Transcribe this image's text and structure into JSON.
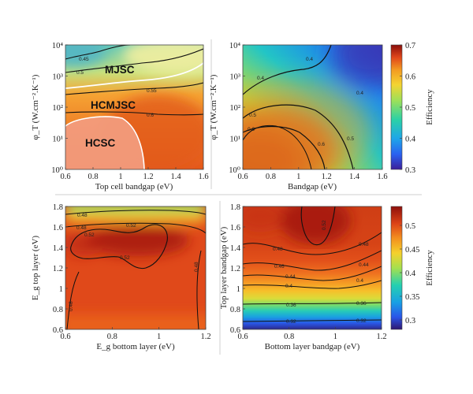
{
  "chart_data": [
    {
      "type": "heatmap",
      "panel": "top-left",
      "xlabel": "Top cell bandgap (eV)",
      "ylabel": "φ_T (W.cm⁻².K⁻¹)",
      "xlim": [
        0.6,
        1.6
      ],
      "ylim_log10": [
        0,
        4
      ],
      "x_ticks": [
        "0.6",
        "0.8",
        "1",
        "1.2",
        "1.4",
        "1.6"
      ],
      "y_ticks": [
        "10⁰",
        "10¹",
        "10²",
        "10³",
        "10⁴"
      ],
      "regions": [
        "MJSC",
        "HCMJSC",
        "HCSC"
      ],
      "contour_labels": [
        "0.45",
        "0.5",
        "0.55",
        "0.6"
      ]
    },
    {
      "type": "heatmap",
      "panel": "top-right",
      "xlabel": "Bandgap (eV)",
      "ylabel": "φ_T (W.cm⁻².K⁻¹)",
      "xlim": [
        0.6,
        1.6
      ],
      "ylim_log10": [
        0,
        4
      ],
      "x_ticks": [
        "0.6",
        "0.8",
        "1",
        "1.2",
        "1.4",
        "1.6"
      ],
      "y_ticks": [
        "10⁰",
        "10¹",
        "10²",
        "10³",
        "10⁴"
      ],
      "contour_labels": [
        "0.4",
        "0.4",
        "0.5",
        "0.6",
        "0.6",
        "0.5",
        "0.4"
      ],
      "colorbar": {
        "label": "Efficiency",
        "range": [
          0.3,
          0.7
        ],
        "ticks": [
          "0.3",
          "0.4",
          "0.5",
          "0.6",
          "0.7"
        ]
      }
    },
    {
      "type": "heatmap",
      "panel": "bottom-left",
      "xlabel": "E_g bottom layer (eV)",
      "ylabel": "E_g top layer (eV)",
      "xlim": [
        0.6,
        1.2
      ],
      "ylim": [
        0.6,
        1.8
      ],
      "x_ticks": [
        "0.6",
        "0.8",
        "1",
        "1.2"
      ],
      "y_ticks": [
        "0.6",
        "0.8",
        "1",
        "1.2",
        "1.4",
        "1.6",
        "1.8"
      ],
      "contour_labels": [
        "0.48",
        "0.48",
        "0.52",
        "0.52",
        "0.52",
        "0.48",
        "0.48"
      ]
    },
    {
      "type": "heatmap",
      "panel": "bottom-right",
      "xlabel": "Bottom layer bandgap (eV)",
      "ylabel": "Top layer bandgap (eV)",
      "xlim": [
        0.6,
        1.2
      ],
      "ylim": [
        0.6,
        1.8
      ],
      "x_ticks": [
        "0.6",
        "0.8",
        "1",
        "1.2"
      ],
      "y_ticks": [
        "0.6",
        "0.8",
        "1",
        "1.2",
        "1.4",
        "1.6",
        "1.8"
      ],
      "contour_labels": [
        "0.52",
        "0.48",
        "0.48",
        "0.46",
        "0.44",
        "0.44",
        "0.4",
        "0.4",
        "0.36",
        "0.36",
        "0.32",
        "0.32"
      ],
      "colorbar": {
        "label": "Efficiency",
        "range": [
          0.28,
          0.54
        ],
        "ticks": [
          "0.3",
          "0.35",
          "0.4",
          "0.45",
          "0.5"
        ]
      }
    }
  ]
}
